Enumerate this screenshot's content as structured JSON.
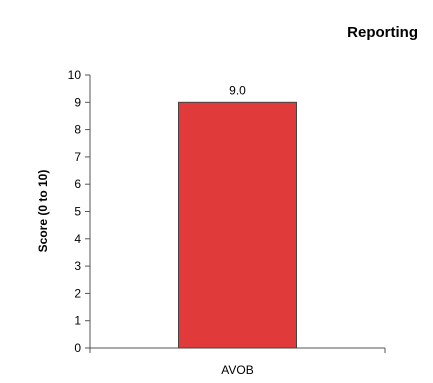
{
  "chart_data": {
    "type": "bar",
    "title": "Reporting",
    "xlabel": "",
    "ylabel": "Score (0 to 10)",
    "categories": [
      "AVOB"
    ],
    "values": [
      9.0
    ],
    "data_labels": [
      "9.0"
    ],
    "ylim": [
      0,
      10
    ],
    "yticks": [
      0,
      1,
      2,
      3,
      4,
      5,
      6,
      7,
      8,
      9,
      10
    ],
    "grid": false,
    "legend": "none",
    "colors": {
      "bar_fill": "#e03a3a",
      "bar_stroke": "#444444",
      "axis": "#555555",
      "text": "#000000"
    }
  }
}
